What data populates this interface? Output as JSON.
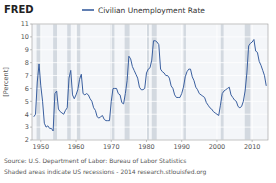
{
  "chart_data": {
    "type": "line",
    "title": "Civilian Unemployment Rate",
    "y_label": "[Percent]",
    "annotations": [
      "FRED",
      "Source: U.S. Department of Labor: Bureau of Labor Statistics",
      "Shaded areas indicate US recessions - 2014 research.stlouisfed.org"
    ],
    "color": "#3a5f9f",
    "grid": true,
    "xlim": [
      1947.5,
      2014.5
    ],
    "xticks": [
      1950,
      1960,
      1970,
      1980,
      1990,
      2000,
      2010
    ],
    "ylim": [
      2,
      11
    ],
    "yticks": [
      2,
      3,
      4,
      5,
      6,
      7,
      8,
      9,
      10,
      11
    ],
    "recession_bands": [
      [
        1948.8,
        1950.0
      ],
      [
        1953.5,
        1954.6
      ],
      [
        1957.5,
        1958.5
      ],
      [
        1960.2,
        1961.2
      ],
      [
        1969.8,
        1970.9
      ],
      [
        1973.8,
        1975.2
      ],
      [
        1980.0,
        1980.7
      ],
      [
        1981.5,
        1982.9
      ],
      [
        1990.5,
        1991.2
      ],
      [
        2001.1,
        2001.9
      ],
      [
        2007.9,
        2009.5
      ]
    ],
    "x": [
      1948.0,
      1948.5,
      1949.0,
      1949.5,
      1950.0,
      1950.5,
      1951.0,
      1951.5,
      1952.0,
      1952.5,
      1953.0,
      1953.5,
      1954.0,
      1954.5,
      1955.0,
      1955.5,
      1956.0,
      1956.5,
      1957.0,
      1957.5,
      1958.0,
      1958.5,
      1959.0,
      1959.5,
      1960.0,
      1960.5,
      1961.0,
      1961.5,
      1962.0,
      1962.5,
      1963.0,
      1963.5,
      1964.0,
      1964.5,
      1965.0,
      1965.5,
      1966.0,
      1966.5,
      1967.0,
      1967.5,
      1968.0,
      1968.5,
      1969.0,
      1969.5,
      1970.0,
      1970.5,
      1971.0,
      1971.5,
      1972.0,
      1972.5,
      1973.0,
      1973.5,
      1974.0,
      1974.5,
      1975.0,
      1975.5,
      1976.0,
      1976.5,
      1977.0,
      1977.5,
      1978.0,
      1978.5,
      1979.0,
      1979.5,
      1980.0,
      1980.5,
      1981.0,
      1981.5,
      1982.0,
      1982.5,
      1983.0,
      1983.5,
      1984.0,
      1984.5,
      1985.0,
      1985.5,
      1986.0,
      1986.5,
      1987.0,
      1987.5,
      1988.0,
      1988.5,
      1989.0,
      1989.5,
      1990.0,
      1990.5,
      1991.0,
      1991.5,
      1992.0,
      1992.5,
      1993.0,
      1993.5,
      1994.0,
      1994.5,
      1995.0,
      1995.5,
      1996.0,
      1996.5,
      1997.0,
      1997.5,
      1998.0,
      1998.5,
      1999.0,
      1999.5,
      2000.0,
      2000.5,
      2001.0,
      2001.5,
      2002.0,
      2002.5,
      2003.0,
      2003.5,
      2004.0,
      2004.5,
      2005.0,
      2005.5,
      2006.0,
      2006.5,
      2007.0,
      2007.5,
      2008.0,
      2008.5,
      2009.0,
      2009.5,
      2010.0,
      2010.5,
      2011.0,
      2011.5,
      2012.0,
      2012.5,
      2013.0,
      2013.5,
      2014.0
    ],
    "values": [
      3.8,
      4.0,
      6.5,
      7.9,
      6.2,
      5.0,
      3.3,
      3.0,
      3.1,
      2.9,
      2.9,
      2.7,
      5.6,
      5.8,
      4.4,
      4.2,
      4.1,
      4.0,
      4.3,
      4.5,
      6.8,
      7.4,
      5.5,
      5.2,
      5.5,
      5.9,
      6.7,
      7.1,
      5.6,
      5.5,
      5.6,
      5.5,
      5.2,
      5.0,
      4.5,
      4.3,
      3.8,
      3.7,
      3.8,
      3.9,
      3.6,
      3.5,
      3.5,
      3.5,
      5.0,
      6.0,
      6.0,
      6.0,
      5.6,
      5.5,
      4.9,
      4.8,
      5.6,
      6.6,
      8.5,
      8.3,
      7.7,
      7.4,
      7.1,
      6.8,
      6.1,
      5.9,
      5.9,
      6.0,
      7.2,
      7.5,
      7.6,
      8.2,
      9.7,
      9.7,
      9.6,
      9.4,
      7.5,
      7.3,
      7.2,
      7.0,
      7.0,
      6.8,
      6.2,
      6.0,
      5.5,
      5.3,
      5.3,
      5.3,
      5.6,
      6.1,
      6.9,
      7.3,
      7.5,
      7.5,
      6.9,
      6.6,
      6.1,
      5.9,
      5.6,
      5.5,
      5.4,
      5.3,
      4.9,
      4.7,
      4.5,
      4.4,
      4.2,
      4.1,
      4.0,
      3.9,
      4.7,
      5.6,
      5.8,
      5.9,
      6.0,
      6.1,
      5.5,
      5.3,
      5.1,
      5.0,
      4.6,
      4.5,
      4.6,
      5.0,
      5.8,
      7.2,
      9.3,
      9.5,
      9.6,
      9.8,
      8.9,
      8.8,
      8.1,
      7.8,
      7.4,
      7.0,
      6.2
    ]
  }
}
